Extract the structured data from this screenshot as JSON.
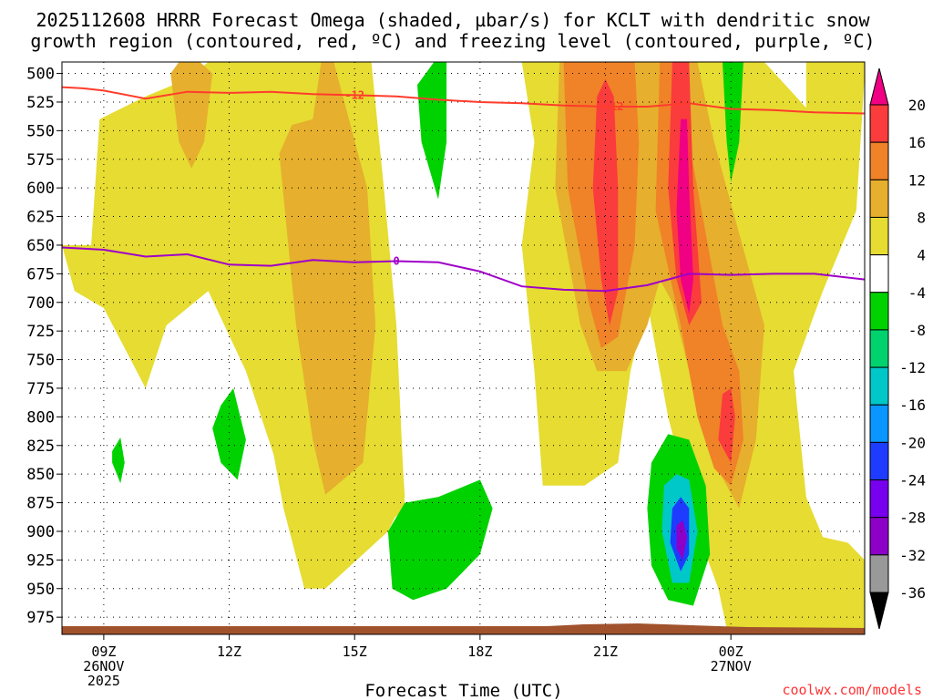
{
  "chart_data": {
    "type": "heatmap",
    "title_line1": "2025112608 HRRR Forecast Omega (shaded, µbar/s) for KCLT with dendritic snow",
    "title_line2": "growth region (contoured, red, ºC) and freezing level (contoured, purple, ºC)",
    "xlabel": "Forecast Time (UTC)",
    "ylabel": "",
    "watermark": "coolwx.com/models",
    "x_range_hours": [
      8.0,
      27.2
    ],
    "y_range_hpa": [
      490,
      990
    ],
    "y_ticks": [
      {
        "value": 500,
        "label": "500"
      },
      {
        "value": 525,
        "label": "525"
      },
      {
        "value": 550,
        "label": "550"
      },
      {
        "value": 575,
        "label": "575"
      },
      {
        "value": 600,
        "label": "600"
      },
      {
        "value": 625,
        "label": "625"
      },
      {
        "value": 650,
        "label": "650"
      },
      {
        "value": 675,
        "label": "675"
      },
      {
        "value": 700,
        "label": "700"
      },
      {
        "value": 725,
        "label": "725"
      },
      {
        "value": 750,
        "label": "750"
      },
      {
        "value": 775,
        "label": "775"
      },
      {
        "value": 800,
        "label": "800"
      },
      {
        "value": 825,
        "label": "825"
      },
      {
        "value": 850,
        "label": "850"
      },
      {
        "value": 875,
        "label": "875"
      },
      {
        "value": 900,
        "label": "900"
      },
      {
        "value": 925,
        "label": "925"
      },
      {
        "value": 950,
        "label": "950"
      },
      {
        "value": 975,
        "label": "975"
      }
    ],
    "x_ticks": [
      {
        "hour": 9,
        "label": "09Z",
        "sub1": "26NOV",
        "sub2": "2025"
      },
      {
        "hour": 12,
        "label": "12Z",
        "sub1": "",
        "sub2": ""
      },
      {
        "hour": 15,
        "label": "15Z",
        "sub1": "",
        "sub2": ""
      },
      {
        "hour": 18,
        "label": "18Z",
        "sub1": "",
        "sub2": ""
      },
      {
        "hour": 21,
        "label": "21Z",
        "sub1": "",
        "sub2": ""
      },
      {
        "hour": 24,
        "label": "00Z",
        "sub1": "27NOV",
        "sub2": ""
      }
    ],
    "colorbar": {
      "levels": [
        -36,
        -32,
        -28,
        -24,
        -20,
        -16,
        -12,
        -8,
        -4,
        4,
        8,
        12,
        16,
        20
      ],
      "labels": [
        "20",
        "16",
        "12",
        "8",
        "4",
        "-4",
        "-8",
        "-12",
        "-16",
        "-20",
        "-24",
        "-28",
        "-32",
        "-36"
      ],
      "colors": [
        "#000000",
        "#999999",
        "#8c00c8",
        "#7700ee",
        "#1e3cff",
        "#0a96ff",
        "#00c8c8",
        "#00d26e",
        "#00d200",
        "#ffffff",
        "#e6dc32",
        "#e6af2d",
        "#f08228",
        "#fa3c3c",
        "#f00082"
      ]
    },
    "contours": [
      {
        "name": "dendritic -12C",
        "color": "#ff3c2c",
        "label": "-12",
        "points": [
          [
            8.0,
            512
          ],
          [
            8.5,
            513
          ],
          [
            9,
            515
          ],
          [
            10,
            522
          ],
          [
            11,
            516
          ],
          [
            12,
            517
          ],
          [
            13,
            516
          ],
          [
            14,
            518
          ],
          [
            15,
            519
          ],
          [
            16,
            520
          ],
          [
            17,
            523
          ],
          [
            18,
            525
          ],
          [
            19,
            526
          ],
          [
            20,
            528
          ],
          [
            21,
            529
          ],
          [
            22,
            529
          ],
          [
            23,
            526
          ],
          [
            24,
            531
          ],
          [
            25,
            532
          ],
          [
            26,
            534
          ],
          [
            27.2,
            535
          ]
        ],
        "label_positions": [
          [
            15.0,
            519
          ],
          [
            21.2,
            529
          ]
        ]
      },
      {
        "name": "freezing level 0C",
        "color": "#a000c8",
        "label": "0",
        "points": [
          [
            8.0,
            652
          ],
          [
            9,
            654
          ],
          [
            10,
            660
          ],
          [
            11,
            658
          ],
          [
            12,
            667
          ],
          [
            13,
            668
          ],
          [
            14,
            663
          ],
          [
            15,
            665
          ],
          [
            16,
            664
          ],
          [
            17,
            665
          ],
          [
            18,
            673
          ],
          [
            19,
            686
          ],
          [
            20,
            689
          ],
          [
            21,
            690
          ],
          [
            22,
            685
          ],
          [
            23,
            675
          ],
          [
            24,
            676
          ],
          [
            25,
            675
          ],
          [
            26,
            675
          ],
          [
            27.2,
            680
          ]
        ],
        "label_positions": [
          [
            16.0,
            664
          ]
        ]
      }
    ]
  }
}
